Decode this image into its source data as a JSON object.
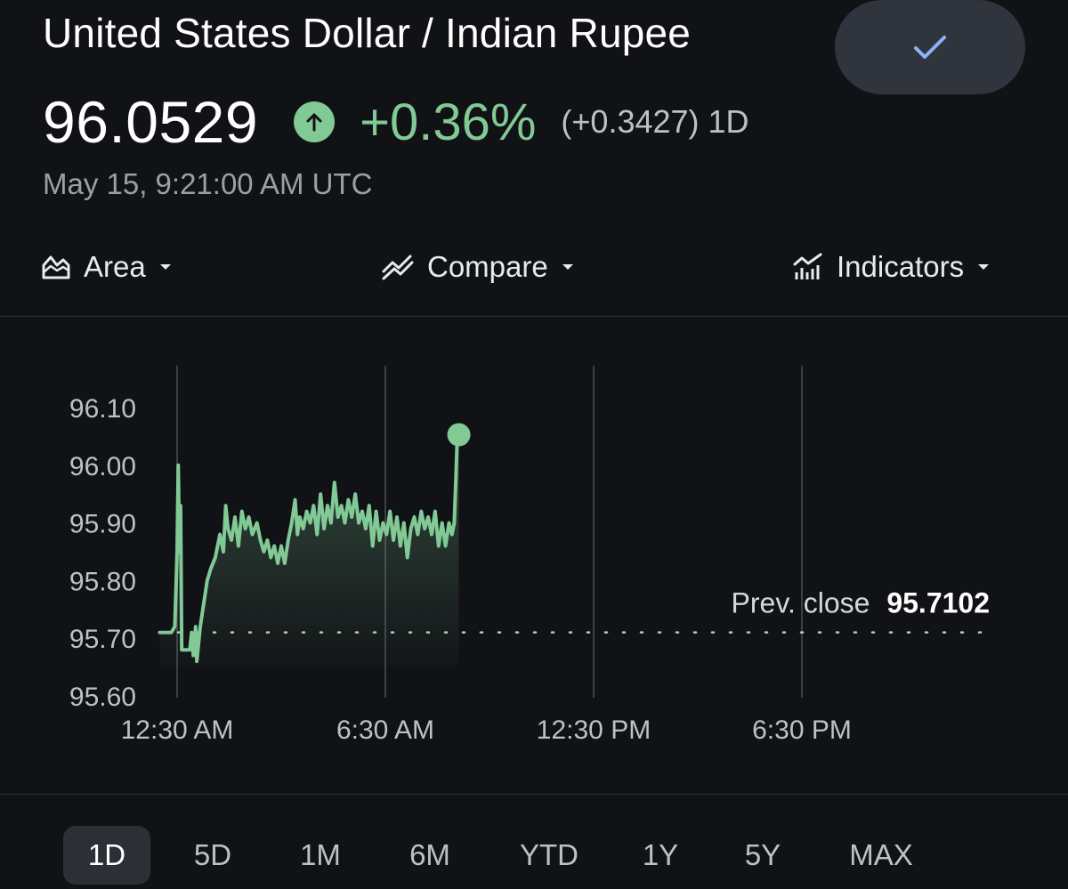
{
  "header": {
    "title": "United States Dollar / Indian Rupee",
    "price": "96.0529",
    "change_percent": "+0.36%",
    "change_abs": "(+0.3427)",
    "span": "1D",
    "timestamp": "May 15, 9:21:00 AM UTC",
    "check_icon": "checkmark-icon",
    "up_icon": "arrow-up-icon"
  },
  "toolbar": {
    "area_label": "Area",
    "compare_label": "Compare",
    "indicators_label": "Indicators"
  },
  "colors": {
    "background": "#111216",
    "positive": "#81c995",
    "button_bg": "#30343d",
    "check_icon": "#8ab4f8"
  },
  "chart_data": {
    "type": "area",
    "y_ticks": [
      "96.10",
      "96.00",
      "95.90",
      "95.80",
      "95.70",
      "95.60"
    ],
    "x_ticks": [
      "12:30 AM",
      "6:30 AM",
      "12:30 PM",
      "6:30 PM"
    ],
    "ylim": [
      95.6,
      96.1
    ],
    "prev_close_label": "Prev. close",
    "prev_close_value": "95.7102",
    "prev_close": 95.7102,
    "last_value": 96.0529,
    "grid": "vertical",
    "series": [
      {
        "values_by_minutes_since_midnight": [
          [
            0,
            95.71
          ],
          [
            20,
            95.71
          ],
          [
            26,
            95.72
          ],
          [
            30,
            95.85
          ],
          [
            32,
            96.0
          ],
          [
            34,
            95.85
          ],
          [
            36,
            95.93
          ],
          [
            38,
            95.68
          ],
          [
            44,
            95.68
          ],
          [
            52,
            95.68
          ],
          [
            55,
            95.71
          ],
          [
            58,
            95.67
          ],
          [
            62,
            95.72
          ],
          [
            64,
            95.66
          ],
          [
            70,
            95.72
          ],
          [
            76,
            95.76
          ],
          [
            82,
            95.8
          ],
          [
            88,
            95.82
          ],
          [
            96,
            95.84
          ],
          [
            104,
            95.88
          ],
          [
            110,
            95.85
          ],
          [
            114,
            95.93
          ],
          [
            118,
            95.89
          ],
          [
            124,
            95.87
          ],
          [
            130,
            95.91
          ],
          [
            136,
            95.86
          ],
          [
            142,
            95.92
          ],
          [
            148,
            95.89
          ],
          [
            154,
            95.91
          ],
          [
            160,
            95.88
          ],
          [
            168,
            95.9
          ],
          [
            174,
            95.87
          ],
          [
            180,
            95.85
          ],
          [
            186,
            95.87
          ],
          [
            192,
            95.84
          ],
          [
            198,
            95.86
          ],
          [
            204,
            95.83
          ],
          [
            210,
            95.86
          ],
          [
            216,
            95.83
          ],
          [
            222,
            95.87
          ],
          [
            228,
            95.9
          ],
          [
            234,
            95.94
          ],
          [
            238,
            95.88
          ],
          [
            242,
            95.91
          ],
          [
            248,
            95.89
          ],
          [
            254,
            95.92
          ],
          [
            260,
            95.9
          ],
          [
            266,
            95.93
          ],
          [
            272,
            95.88
          ],
          [
            278,
            95.95
          ],
          [
            284,
            95.89
          ],
          [
            290,
            95.93
          ],
          [
            296,
            95.9
          ],
          [
            302,
            95.97
          ],
          [
            308,
            95.91
          ],
          [
            314,
            95.93
          ],
          [
            320,
            95.9
          ],
          [
            326,
            95.94
          ],
          [
            332,
            95.91
          ],
          [
            338,
            95.95
          ],
          [
            344,
            95.9
          ],
          [
            350,
            95.92
          ],
          [
            356,
            95.89
          ],
          [
            362,
            95.93
          ],
          [
            368,
            95.86
          ],
          [
            374,
            95.92
          ],
          [
            380,
            95.87
          ],
          [
            386,
            95.9
          ],
          [
            392,
            95.88
          ],
          [
            398,
            95.92
          ],
          [
            404,
            95.87
          ],
          [
            410,
            95.91
          ],
          [
            416,
            95.86
          ],
          [
            422,
            95.9
          ],
          [
            428,
            95.84
          ],
          [
            434,
            95.89
          ],
          [
            440,
            95.91
          ],
          [
            446,
            95.88
          ],
          [
            452,
            95.92
          ],
          [
            458,
            95.89
          ],
          [
            464,
            95.91
          ],
          [
            470,
            95.88
          ],
          [
            476,
            95.92
          ],
          [
            482,
            95.86
          ],
          [
            488,
            95.9
          ],
          [
            494,
            95.86
          ],
          [
            500,
            95.9
          ],
          [
            505,
            95.88
          ],
          [
            509,
            95.9
          ],
          [
            512,
            95.98
          ],
          [
            514,
            96.04
          ],
          [
            517,
            96.05
          ]
        ]
      }
    ]
  },
  "ranges": [
    {
      "label": "1D",
      "active": true
    },
    {
      "label": "5D",
      "active": false
    },
    {
      "label": "1M",
      "active": false
    },
    {
      "label": "6M",
      "active": false
    },
    {
      "label": "YTD",
      "active": false
    },
    {
      "label": "1Y",
      "active": false
    },
    {
      "label": "5Y",
      "active": false
    },
    {
      "label": "MAX",
      "active": false
    }
  ]
}
